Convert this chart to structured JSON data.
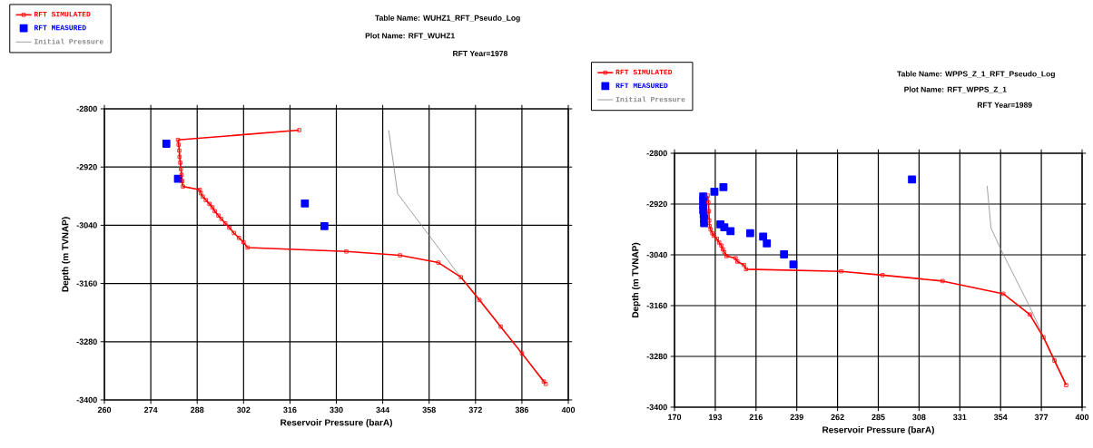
{
  "chart_data": [
    {
      "type": "line",
      "xlabel": "Reservoir Pressure (barA)",
      "ylabel": "Depth (m TVNAP)",
      "annotations": [
        "Table Name: WUHZ1_RFT_Pseudo_Log",
        "Plot Name: RFT_WUHZ1",
        "RFT Year=1978"
      ],
      "xlim": [
        260,
        400
      ],
      "ylim": [
        -3400,
        -2800
      ],
      "xticks": [
        260,
        274,
        288,
        302,
        316,
        330,
        344,
        358,
        372,
        386,
        400
      ],
      "yticks": [
        -3400,
        -3280,
        -3160,
        -3040,
        -2920,
        -2800
      ],
      "grid": true,
      "legend": "top left",
      "series": [
        {
          "name": "RFT SIMULATED",
          "color": "#ff0000",
          "type": "line",
          "marker": "square",
          "x": [
            318.8,
            282.2,
            282.4,
            282.6,
            282.7,
            282.9,
            283.1,
            283.3,
            283.5,
            283.7,
            288.8,
            289.1,
            289.7,
            290.6,
            291.7,
            292.6,
            293.3,
            294.4,
            295.3,
            296.5,
            297.7,
            299.1,
            300.6,
            302.0,
            303.2,
            333.0,
            349.2,
            360.8,
            367.6,
            373.2,
            379.6,
            386.0,
            392.6,
            393.2
          ],
          "values": [
            -2844,
            -2864,
            -2874,
            -2886,
            -2899,
            -2911,
            -2924,
            -2936,
            -2949,
            -2960,
            -2967,
            -2974,
            -2981,
            -2988,
            -2996,
            -3003,
            -3011,
            -3020,
            -3027,
            -3036,
            -3045,
            -3056,
            -3066,
            -3075,
            -3086,
            -3094,
            -3102,
            -3117,
            -3147,
            -3194,
            -3249,
            -3304,
            -3362,
            -3367
          ]
        },
        {
          "name": "RFT MEASURED",
          "color": "#0000ff",
          "type": "scatter",
          "marker": "square",
          "x": [
            278.7,
            282.2,
            320.5,
            326.4
          ],
          "values": [
            -2872,
            -2944,
            -2995,
            -3042
          ]
        },
        {
          "name": "Initial Pressure",
          "color": "#888888",
          "marker": "none",
          "x": [
            345.8,
            348.5,
            358.0,
            367.6,
            393.1
          ],
          "values": [
            -2844,
            -2975,
            -3061,
            -3148,
            -3364
          ]
        }
      ]
    },
    {
      "type": "line",
      "xlabel": "Reservoir Pressure (barA)",
      "ylabel": "Depth (m TVNAP)",
      "annotations": [
        "Table Name: WPPS_Z_1_RFT_Pseudo_Log",
        "Plot Name: RFT_WPPS_Z_1",
        "RFT Year=1989"
      ],
      "xlim": [
        170,
        400
      ],
      "ylim": [
        -3400,
        -2800
      ],
      "xticks": [
        170,
        193,
        216,
        239,
        262,
        285,
        308,
        331,
        354,
        377,
        400
      ],
      "yticks": [
        -3400,
        -3280,
        -3160,
        -3040,
        -2920,
        -2800
      ],
      "grid": true,
      "legend": "top left",
      "series": [
        {
          "name": "RFT SIMULATED",
          "color": "#ff0000",
          "type": "line",
          "marker": "square",
          "x": [
            188.7,
            189.1,
            189.4,
            189.6,
            189.8,
            190.4,
            191.3,
            192.1,
            193.9,
            195.2,
            196.4,
            197.3,
            198.1,
            199.3,
            204.5,
            205.5,
            209.2,
            210.4,
            264.0,
            287.4,
            321.3,
            355.5,
            370.5,
            378.2,
            384.4,
            391.0
          ],
          "values": [
            -2900,
            -2916,
            -2937,
            -2959,
            -2972,
            -2980,
            -2989,
            -2995,
            -3002,
            -3011,
            -3018,
            -3027,
            -3034,
            -3043,
            -3048,
            -3056,
            -3064,
            -3074,
            -3079,
            -3088,
            -3102,
            -3132,
            -3181,
            -3235,
            -3290,
            -3348
          ]
        },
        {
          "name": "RFT MEASURED",
          "color": "#0000ff",
          "type": "scatter",
          "marker": "square",
          "x": [
            186.2,
            186.2,
            186.2,
            186.2,
            186.5,
            186.7,
            186.7,
            192.5,
            197.6,
            195.9,
            198.1,
            201.6,
            212.7,
            220.0,
            222.1,
            231.8,
            237.1,
            304.0
          ],
          "values": [
            -2902,
            -2912,
            -2923,
            -2934,
            -2945,
            -2955,
            -2965,
            -2891,
            -2880,
            -2968,
            -2975,
            -2984,
            -2989,
            -2997,
            -3013,
            -3039,
            -3063,
            -2862
          ]
        },
        {
          "name": "Initial Pressure",
          "color": "#888888",
          "marker": "none",
          "x": [
            346.4,
            348.6,
            354.6,
            370.0,
            391.0
          ],
          "values": [
            -2877,
            -2977,
            -3031,
            -3159,
            -3346
          ]
        }
      ]
    }
  ]
}
